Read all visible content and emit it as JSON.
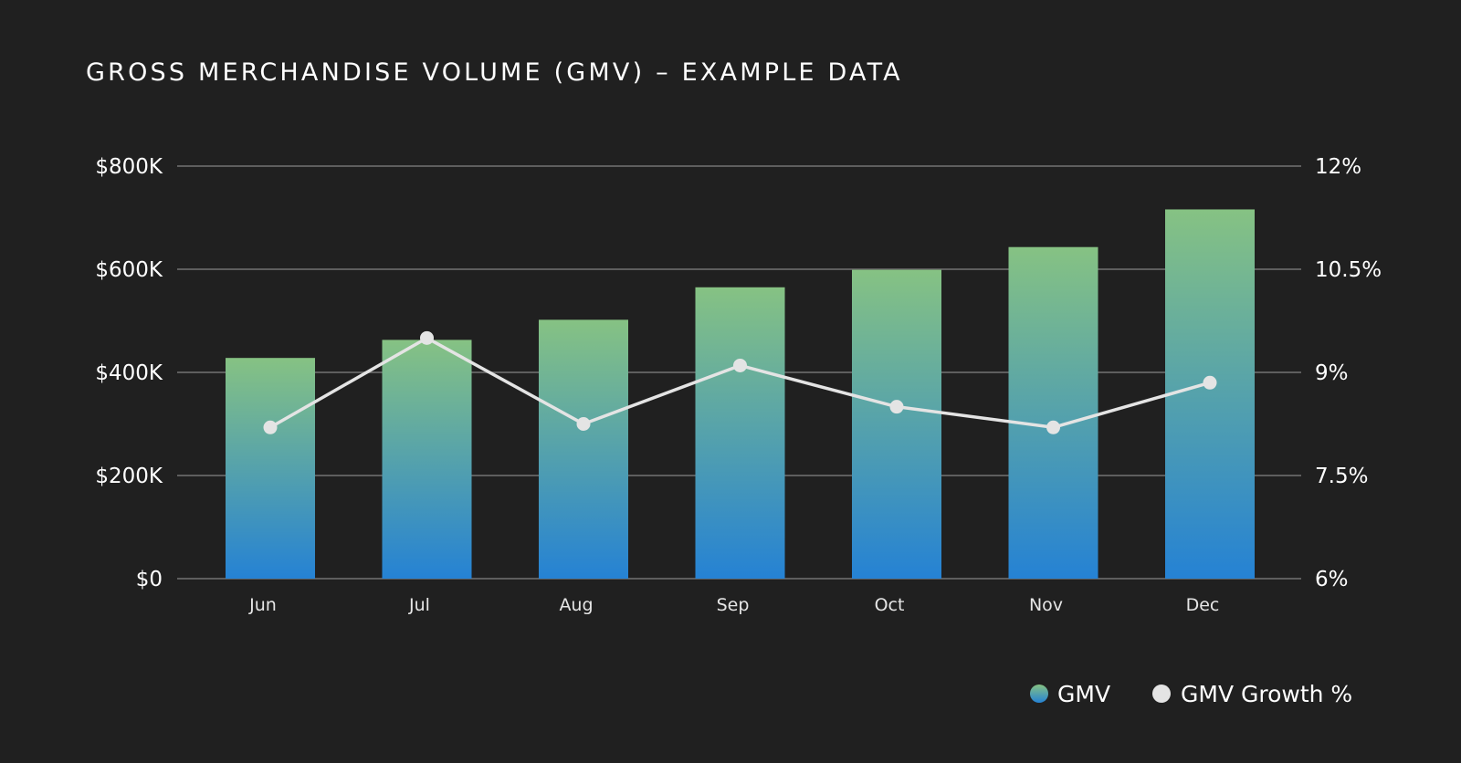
{
  "chart_data": {
    "type": "bar",
    "title": "GROSS MERCHANDISE VOLUME (GMV) – EXAMPLE DATA",
    "categories": [
      "Jun",
      "Jul",
      "Aug",
      "Sep",
      "Oct",
      "Nov",
      "Dec"
    ],
    "series": [
      {
        "name": "GMV",
        "type": "bar",
        "axis": "left",
        "values": [
          428000,
          463000,
          502000,
          565000,
          599000,
          643000,
          716000
        ]
      },
      {
        "name": "GMV Growth %",
        "type": "line",
        "axis": "right",
        "values": [
          8.2,
          9.5,
          8.25,
          9.1,
          8.5,
          8.2,
          8.85
        ]
      }
    ],
    "y_left": {
      "range": [
        0,
        800000
      ],
      "ticks": [
        0,
        200000,
        400000,
        600000,
        800000
      ],
      "tick_labels": [
        "$0",
        "$200K",
        "$400K",
        "$600K",
        "$800K"
      ]
    },
    "y_right": {
      "range": [
        6,
        12
      ],
      "ticks": [
        6,
        7.5,
        9,
        10.5,
        12
      ],
      "tick_labels": [
        "6%",
        "7.5%",
        "9%",
        "10.5%",
        "12%"
      ]
    },
    "grid": true,
    "legend_position": "bottom-right",
    "colors": {
      "background": "#202020",
      "bar_top": "#86c283",
      "bar_bottom": "#2582d4",
      "line": "#e4e4e4",
      "grid": "#5e5e5e"
    }
  }
}
